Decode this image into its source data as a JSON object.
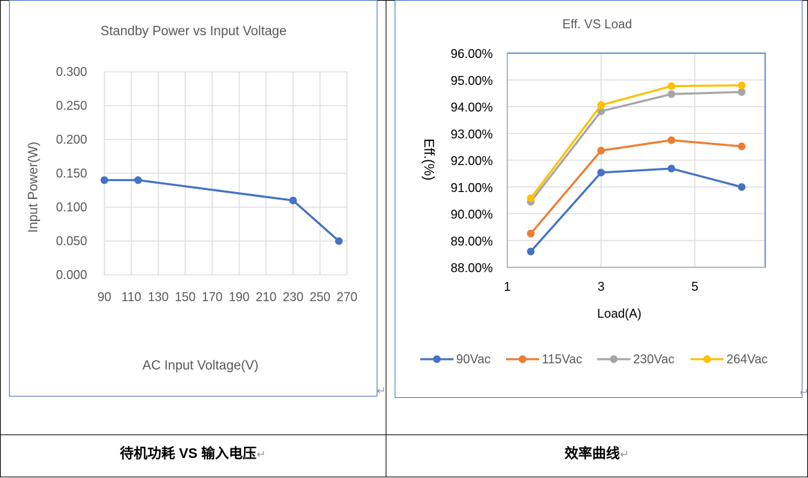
{
  "captions": {
    "left": "待机功耗 VS 输入电压",
    "right": "效率曲线",
    "return_mark": "↵"
  },
  "chart_data": [
    {
      "type": "line",
      "title": "Standby Power vs Input Voltage",
      "xlabel": "AC Input Voltage(V)",
      "ylabel": "Input Power(W)",
      "xlim": [
        90,
        270
      ],
      "ylim": [
        0,
        0.3
      ],
      "xticks": [
        "90",
        "110",
        "130",
        "150",
        "170",
        "190",
        "210",
        "230",
        "250",
        "270"
      ],
      "yticks": [
        "0.000",
        "0.050",
        "0.100",
        "0.150",
        "0.200",
        "0.250",
        "0.300"
      ],
      "grid": true,
      "series": [
        {
          "x": [
            90,
            115,
            230,
            264
          ],
          "y": [
            0.14,
            0.14,
            0.11,
            0.05
          ],
          "color": "#4472c4"
        }
      ]
    },
    {
      "type": "line",
      "title": "Eff. VS Load",
      "xlabel": "Load(A)",
      "ylabel": "Eff.(%)",
      "xlim": [
        1,
        6.5
      ],
      "ylim": [
        88,
        96
      ],
      "xticks": [
        "1",
        "3",
        "5"
      ],
      "yticks": [
        "88.00%",
        "89.00%",
        "90.00%",
        "91.00%",
        "92.00%",
        "93.00%",
        "94.00%",
        "95.00%",
        "96.00%"
      ],
      "grid": true,
      "legend": "bottom",
      "x": [
        1.5,
        3,
        4.5,
        6
      ],
      "series": [
        {
          "name": "90Vac",
          "values": [
            88.59,
            91.54,
            91.69,
            91.0
          ],
          "color": "#4472c4"
        },
        {
          "name": "115Vac",
          "values": [
            89.26,
            92.36,
            92.75,
            92.52
          ],
          "color": "#ed7d31"
        },
        {
          "name": "230Vac",
          "values": [
            90.45,
            93.83,
            94.47,
            94.55
          ],
          "color": "#a5a5a5"
        },
        {
          "name": "264Vac",
          "values": [
            90.58,
            94.06,
            94.77,
            94.8
          ],
          "color": "#ffc000"
        }
      ]
    }
  ]
}
